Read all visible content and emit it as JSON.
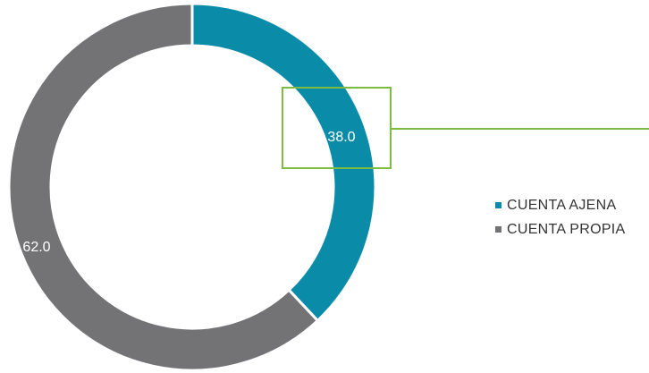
{
  "chart_data": {
    "type": "pie",
    "variant": "donut",
    "categories": [
      "CUENTA AJENA",
      "CUENTA PROPIA"
    ],
    "values": [
      38.0,
      62.0
    ],
    "data_labels": [
      "38.0",
      "62.0"
    ],
    "colors": [
      "#0a8ca8",
      "#737275"
    ],
    "legend": {
      "placement": "right",
      "entries": [
        {
          "label": "CUENTA AJENA",
          "color": "#0a8ca8"
        },
        {
          "label": "CUENTA PROPIA",
          "color": "#737275"
        }
      ]
    },
    "annotation": {
      "highlighted_label": "38.0",
      "color": "#7dbb42"
    }
  }
}
